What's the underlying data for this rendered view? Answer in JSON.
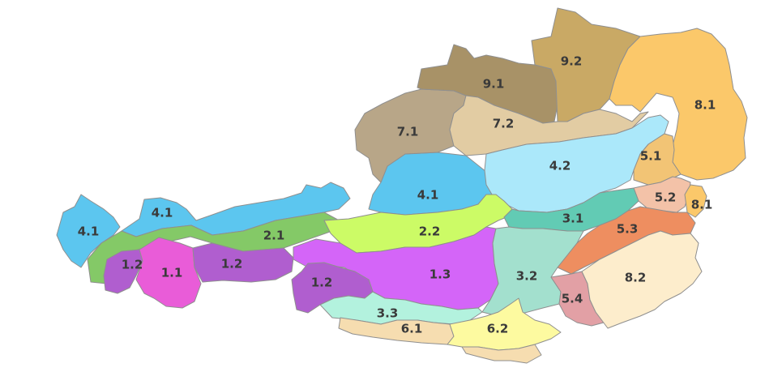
{
  "map": {
    "regions": [
      {
        "id": "r-9-1",
        "label": "9.1",
        "color": "#A89267"
      },
      {
        "id": "r-9-2",
        "label": "9.2",
        "color": "#C9A965"
      },
      {
        "id": "r-8-1-north",
        "label": "8.1",
        "color": "#FBC86A"
      },
      {
        "id": "r-7-1",
        "label": "7.1",
        "color": "#B8A688"
      },
      {
        "id": "r-7-2",
        "label": "7.2",
        "color": "#E2CCA3"
      },
      {
        "id": "r-5-1",
        "label": "5.1",
        "color": "#F2C475"
      },
      {
        "id": "r-4-2",
        "label": "4.2",
        "color": "#ABE8FA"
      },
      {
        "id": "r-4-1-center",
        "label": "4.1",
        "color": "#5CC6EF"
      },
      {
        "id": "r-5-2",
        "label": "5.2",
        "color": "#F3C2A8"
      },
      {
        "id": "r-8-1-east",
        "label": "8.1",
        "color": "#FBC86A"
      },
      {
        "id": "r-4-1-west",
        "label": "4.1",
        "color": "#5CC6EF"
      },
      {
        "id": "r-4-1-north",
        "label": "4.1",
        "color": "#5CC6EF"
      },
      {
        "id": "r-2-1",
        "label": "2.1",
        "color": "#84C967"
      },
      {
        "id": "r-2-2",
        "label": "2.2",
        "color": "#CCFB66"
      },
      {
        "id": "r-3-1",
        "label": "3.1",
        "color": "#62CBB4"
      },
      {
        "id": "r-5-3",
        "label": "5.3",
        "color": "#EE8E60"
      },
      {
        "id": "r-8-2",
        "label": "8.2",
        "color": "#FDEDCC"
      },
      {
        "id": "r-1-2-west",
        "label": "1.2",
        "color": "#B05ECF"
      },
      {
        "id": "r-1-1",
        "label": "1.1",
        "color": "#E95CD8"
      },
      {
        "id": "r-1-2-center",
        "label": "1.2",
        "color": "#B05ECF"
      },
      {
        "id": "r-1-3",
        "label": "1.3",
        "color": "#D465F8"
      },
      {
        "id": "r-1-2-south",
        "label": "1.2",
        "color": "#B05ECF"
      },
      {
        "id": "r-3-2",
        "label": "3.2",
        "color": "#A3E0CE"
      },
      {
        "id": "r-5-4",
        "label": "5.4",
        "color": "#E2A0A5"
      },
      {
        "id": "r-3-3",
        "label": "3.3",
        "color": "#B3F2DE"
      },
      {
        "id": "r-6-1",
        "label": "6.1",
        "color": "#F6DDB0"
      },
      {
        "id": "r-6-2",
        "label": "6.2",
        "color": "#FDFAA0"
      }
    ]
  }
}
